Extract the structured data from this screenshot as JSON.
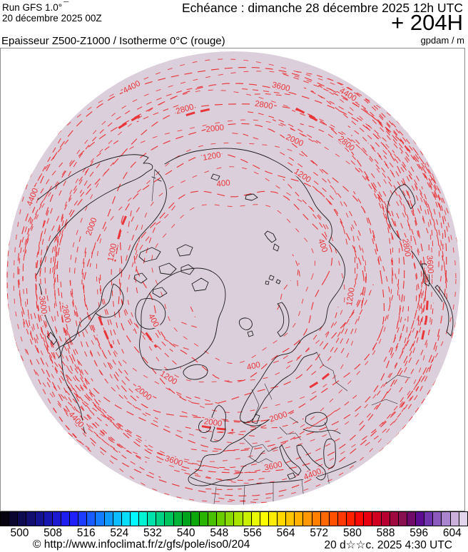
{
  "header": {
    "run_line1": "Run GFS 1.0°",
    "run_mark": "¯",
    "run_line2": "20 décembre 2025 00Z",
    "echeance": "Echéance : dimanche 28 décembre 2025 12h UTC",
    "horizon": "+ 204H",
    "unit": "gpdam / m",
    "product_title": "Epaisseur Z500-Z1000 / Isotherme 0°C (rouge)"
  },
  "map": {
    "background": "#dccfdc",
    "contour_color": "#e93538",
    "coast_color": "#1c1c1c",
    "contours": [
      {
        "value": "400",
        "r": 130,
        "amp": 10,
        "label_angles": [
          96,
          20,
          208,
          283
        ]
      },
      {
        "value": "1200",
        "r": 170,
        "amp": 9,
        "label_angles": [
          100,
          168,
          237,
          351,
          56
        ]
      },
      {
        "value": "2000",
        "r": 208,
        "amp": 8,
        "label_angles": [
          97,
          66,
          160,
          232,
          262,
          288
        ]
      },
      {
        "value": "2800",
        "r": 243,
        "amp": 7,
        "label_angles": [
          106,
          80,
          50,
          10,
          192
        ]
      },
      {
        "value": "3600",
        "r": 273,
        "amp": 6,
        "label_angles": [
          76,
          4,
          188,
          252,
          282
        ]
      },
      {
        "value": "4400",
        "r": 300,
        "amp": 5,
        "label_angles": [
          118,
          58,
          158,
          222,
          292
        ]
      }
    ]
  },
  "colorbar": {
    "ticks": [
      500,
      508,
      516,
      524,
      532,
      540,
      548,
      556,
      564,
      572,
      580,
      588,
      596,
      604
    ],
    "colors": [
      "#06030f",
      "#0a0630",
      "#0e0a50",
      "#120e70",
      "#151290",
      "#1816b0",
      "#1b1ad0",
      "#1e1ef0",
      "#2020ff",
      "#1c3cff",
      "#185cff",
      "#147cff",
      "#109cff",
      "#0cbcff",
      "#08dcff",
      "#04f8ff",
      "#00f4d4",
      "#00e4ac",
      "#00d484",
      "#00c45c",
      "#00b438",
      "#00a41c",
      "#0ca80a",
      "#28b400",
      "#48c000",
      "#68cc00",
      "#88d800",
      "#a8e400",
      "#c8f000",
      "#e8f800",
      "#fcfc00",
      "#ffec00",
      "#ffd800",
      "#ffc400",
      "#ffb000",
      "#ff9800",
      "#ff8000",
      "#ff6800",
      "#ff5000",
      "#ff3800",
      "#ff2000",
      "#fc0800",
      "#e80010",
      "#d00020",
      "#b80030",
      "#a00840",
      "#881050",
      "#700a68",
      "#5c0c90",
      "#7034ac",
      "#8c5abc",
      "#aa84cc",
      "#ccb0dc",
      "#e0d4ea"
    ]
  },
  "footer": {
    "copyright": "© http://www.infoclimat.fr/z/gfs/pole/iso0/204",
    "datetime": "20 d☆☆c. 2025  4:30 UTC"
  }
}
